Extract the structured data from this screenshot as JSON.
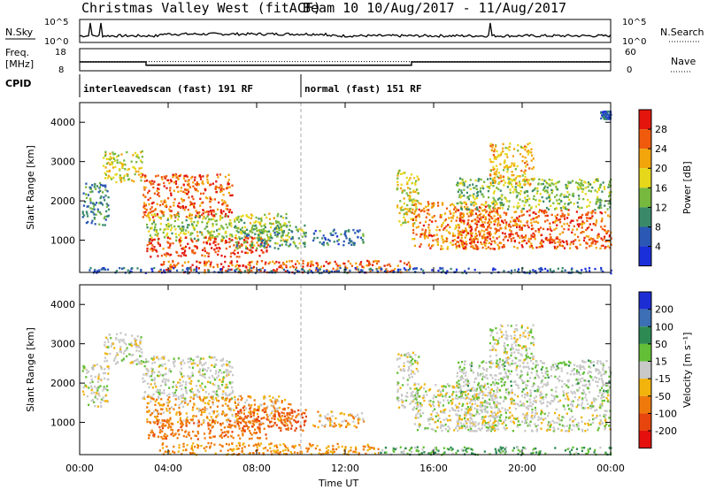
{
  "title": {
    "station": "Christmas Valley West (fitACF)",
    "beam": "Beam 10  10/Aug/2017 - 11/Aug/2017"
  },
  "summary_rows": {
    "nsky_label": "N.Sky",
    "nsearch_label": "N.Search",
    "freq_label": "Freq.",
    "freq_unit": "[MHz]",
    "nave_label": "Nave",
    "cpid_label": "CPID",
    "nsky_ticks": [
      "10^5",
      "10^0"
    ],
    "nsearch_ticks": [
      "10^5",
      "10^0"
    ],
    "freq_ticks": [
      "18",
      "8"
    ],
    "nave_ticks": [
      "60",
      "0"
    ],
    "freq_mhz": [
      {
        "t": 0.0,
        "v": 12.0
      },
      {
        "t": 3.0,
        "v": 10.5
      },
      {
        "t": 15.0,
        "v": 12.0
      },
      {
        "t": 24.0,
        "v": 12.0
      }
    ],
    "nave_level": 25,
    "cpid_segments": [
      {
        "label": "interleavedscan (fast) 191 RF",
        "start": 0.0,
        "end": 10.0
      },
      {
        "label": "normal (fast) 151 RF",
        "start": 10.0,
        "end": 24.0
      }
    ]
  },
  "chart_data": [
    {
      "type": "heatmap",
      "name": "Power",
      "ylabel": "Slant Range [km]",
      "xlabel": "Time UT",
      "xlim": [
        0,
        24
      ],
      "ylim": [
        180,
        4500
      ],
      "x_ticks": [
        "00:00",
        "04:00",
        "08:00",
        "12:00",
        "16:00",
        "20:00",
        "00:00"
      ],
      "y_ticks": [
        1000,
        2000,
        3000,
        4000
      ],
      "colorbar": {
        "label": "Power [dB]",
        "ticks": [
          4,
          8,
          12,
          16,
          20,
          24,
          28
        ],
        "range": [
          0,
          32
        ],
        "colors": [
          "#1b2fd8",
          "#2a58b4",
          "#3a8a6a",
          "#77b83e",
          "#e6d71a",
          "#f2a40b",
          "#ef5a0d",
          "#e3160d"
        ]
      },
      "regions": [
        {
          "t0": 0.1,
          "t1": 1.3,
          "r0": 1400,
          "r1": 2500,
          "power": 10
        },
        {
          "t0": 1.0,
          "t1": 2.8,
          "r0": 2500,
          "r1": 3300,
          "power": 18
        },
        {
          "t0": 2.8,
          "t1": 6.9,
          "r0": 1600,
          "r1": 2700,
          "power": 26
        },
        {
          "t0": 3.0,
          "t1": 9.5,
          "r0": 1000,
          "r1": 1700,
          "power": 16
        },
        {
          "t0": 3.0,
          "t1": 8.5,
          "r0": 600,
          "r1": 1100,
          "power": 28
        },
        {
          "t0": 7.0,
          "t1": 10.2,
          "r0": 800,
          "r1": 1400,
          "power": 12
        },
        {
          "t0": 10.5,
          "t1": 12.8,
          "r0": 900,
          "r1": 1300,
          "power": 8
        },
        {
          "t0": 3.5,
          "t1": 15.0,
          "r0": 200,
          "r1": 500,
          "power": 26
        },
        {
          "t0": 14.3,
          "t1": 15.3,
          "r0": 1400,
          "r1": 2800,
          "power": 18
        },
        {
          "t0": 15.0,
          "t1": 19.0,
          "r0": 800,
          "r1": 2000,
          "power": 24
        },
        {
          "t0": 17.0,
          "t1": 24.0,
          "r0": 800,
          "r1": 1800,
          "power": 26
        },
        {
          "t0": 17.0,
          "t1": 24.0,
          "r0": 1800,
          "r1": 2600,
          "power": 14
        },
        {
          "t0": 18.5,
          "t1": 20.5,
          "r0": 2400,
          "r1": 3500,
          "power": 20
        },
        {
          "t0": 0.0,
          "t1": 24.0,
          "r0": 180,
          "r1": 320,
          "power": 6
        },
        {
          "t0": 23.5,
          "t1": 24.0,
          "r0": 4100,
          "r1": 4300,
          "power": 6
        }
      ]
    },
    {
      "type": "heatmap",
      "name": "Velocity",
      "ylabel": "Slant Range [km]",
      "xlabel": "Time UT",
      "xlim": [
        0,
        24
      ],
      "ylim": [
        180,
        4500
      ],
      "x_ticks": [
        "00:00",
        "04:00",
        "08:00",
        "12:00",
        "16:00",
        "20:00",
        "00:00"
      ],
      "y_ticks": [
        1000,
        2000,
        3000,
        4000
      ],
      "colorbar": {
        "label": "Velocity [m s⁻¹]",
        "ticks": [
          "200",
          "100",
          "50",
          "15",
          "-15",
          "-50",
          "-100",
          "-200"
        ],
        "colors": [
          "#1c2dd4",
          "#3c6fb4",
          "#2d8a52",
          "#63c036",
          "#c8c8c8",
          "#f2b30c",
          "#ef7a0b",
          "#e6450d",
          "#e3100d"
        ]
      },
      "regions": [
        {
          "t0": 0.1,
          "t1": 1.3,
          "r0": 1400,
          "r1": 2500,
          "vel": 0
        },
        {
          "t0": 1.0,
          "t1": 2.8,
          "r0": 2500,
          "r1": 3300,
          "vel": 0
        },
        {
          "t0": 2.8,
          "t1": 6.9,
          "r0": 1600,
          "r1": 2700,
          "vel": 0
        },
        {
          "t0": 3.0,
          "t1": 9.5,
          "r0": 1000,
          "r1": 1700,
          "vel": -30
        },
        {
          "t0": 3.0,
          "t1": 8.5,
          "r0": 600,
          "r1": 1100,
          "vel": -60
        },
        {
          "t0": 7.0,
          "t1": 10.2,
          "r0": 800,
          "r1": 1400,
          "vel": -80
        },
        {
          "t0": 10.5,
          "t1": 12.8,
          "r0": 900,
          "r1": 1300,
          "vel": -20
        },
        {
          "t0": 3.5,
          "t1": 13.5,
          "r0": 200,
          "r1": 500,
          "vel": -40
        },
        {
          "t0": 13.5,
          "t1": 24.0,
          "r0": 200,
          "r1": 400,
          "vel": 30
        },
        {
          "t0": 14.3,
          "t1": 15.3,
          "r0": 1400,
          "r1": 2800,
          "vel": 0
        },
        {
          "t0": 15.0,
          "t1": 19.0,
          "r0": 800,
          "r1": 2000,
          "vel": 0
        },
        {
          "t0": 17.0,
          "t1": 24.0,
          "r0": 800,
          "r1": 1800,
          "vel": 0
        },
        {
          "t0": 17.0,
          "t1": 24.0,
          "r0": 1800,
          "r1": 2600,
          "vel": 10
        },
        {
          "t0": 18.5,
          "t1": 20.5,
          "r0": 2400,
          "r1": 3500,
          "vel": 0
        }
      ]
    }
  ]
}
